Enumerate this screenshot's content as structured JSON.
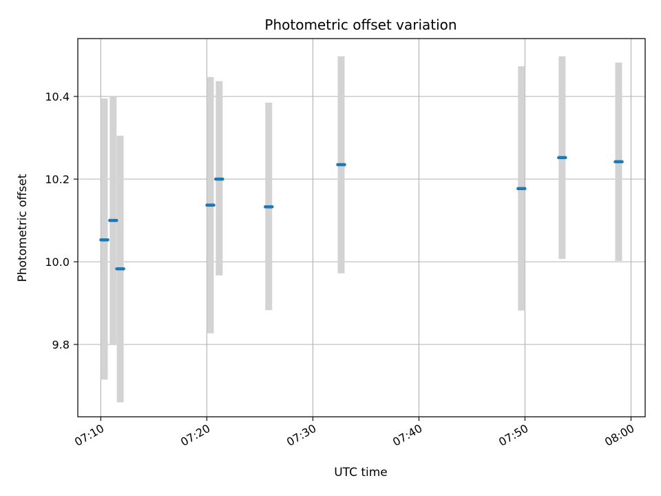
{
  "chart_data": {
    "type": "scatter",
    "title": "Photometric offset variation",
    "xlabel": "UTC time",
    "ylabel": "Photometric offset",
    "x_unit": "UTC HH:MM",
    "xlim": [
      "07:07:50",
      "08:01:20"
    ],
    "ylim": [
      9.625,
      10.54
    ],
    "grid": true,
    "x_ticks": [
      "07:10",
      "07:20",
      "07:30",
      "07:40",
      "07:50",
      "08:00"
    ],
    "y_ticks": [
      9.8,
      10.0,
      10.2,
      10.4
    ],
    "y_tick_labels": [
      "9.8",
      "10.0",
      "10.2",
      "10.4"
    ],
    "colors": {
      "point": "#1f77b4",
      "errorbar": "#d3d3d3",
      "grid": "#b0b0b0"
    },
    "points": [
      {
        "x": "07:10:20",
        "y": 10.053,
        "low": 9.715,
        "high": 10.395
      },
      {
        "x": "07:11:10",
        "y": 10.1,
        "low": 9.8,
        "high": 10.4
      },
      {
        "x": "07:11:50",
        "y": 9.983,
        "low": 9.66,
        "high": 10.305
      },
      {
        "x": "07:20:20",
        "y": 10.137,
        "low": 9.827,
        "high": 10.447
      },
      {
        "x": "07:21:10",
        "y": 10.2,
        "low": 9.967,
        "high": 10.437
      },
      {
        "x": "07:25:50",
        "y": 10.133,
        "low": 9.883,
        "high": 10.385
      },
      {
        "x": "07:32:40",
        "y": 10.235,
        "low": 9.972,
        "high": 10.497
      },
      {
        "x": "07:49:40",
        "y": 10.177,
        "low": 9.882,
        "high": 10.473
      },
      {
        "x": "07:53:30",
        "y": 10.252,
        "low": 10.007,
        "high": 10.497
      },
      {
        "x": "07:58:50",
        "y": 10.242,
        "low": 10.002,
        "high": 10.482
      }
    ]
  }
}
